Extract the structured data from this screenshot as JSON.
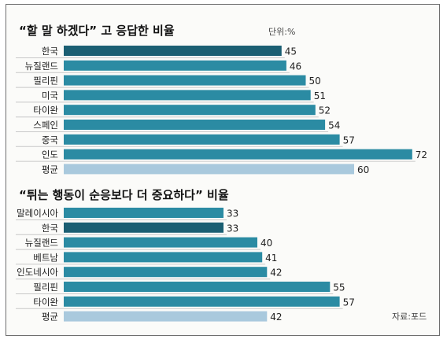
{
  "chart_data": [
    {
      "type": "bar",
      "title": "“할 말 하겠다” 고 응답한 비율",
      "unit_note": "단위:%",
      "categories": [
        "한국",
        "뉴질랜드",
        "필리핀",
        "미국",
        "타이완",
        "스페인",
        "중국",
        "인도",
        "평균"
      ],
      "values": [
        45,
        46,
        50,
        51,
        52,
        54,
        57,
        72,
        60
      ],
      "highlight": "한국",
      "average_label": "평균",
      "xlim": [
        0,
        72
      ]
    },
    {
      "type": "bar",
      "title": "“튀는 행동이 순응보다 더 중요하다” 비율",
      "categories": [
        "말레이시아",
        "한국",
        "뉴질랜드",
        "베트남",
        "인도네시아",
        "필리핀",
        "타이완",
        "평균"
      ],
      "values": [
        33,
        33,
        40,
        41,
        42,
        55,
        57,
        42
      ],
      "highlight": "한국",
      "average_label": "평균",
      "xlim": [
        0,
        72
      ]
    }
  ],
  "source": "자료:포드",
  "colors": {
    "bar": "#2b8ba3",
    "highlight": "#1b5f73",
    "average": "#a9c9dd",
    "rule": "#c8c8c8"
  }
}
